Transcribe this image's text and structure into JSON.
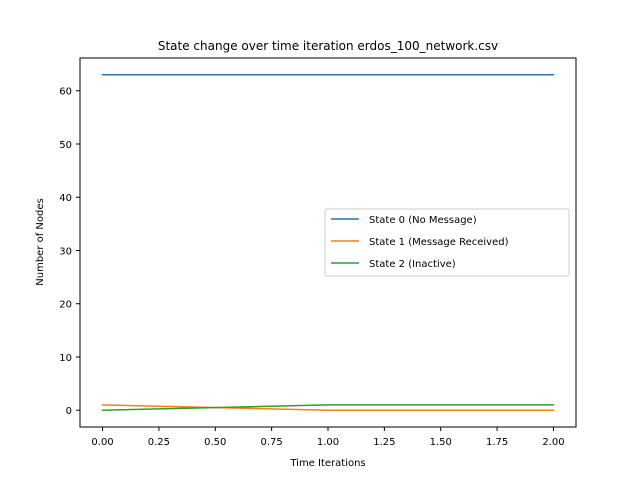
{
  "chart_data": {
    "type": "line",
    "title": "State change over time iteration erdos_100_network.csv",
    "xlabel": "Time Iterations",
    "ylabel": "Number of Nodes",
    "xlim": [
      -0.1,
      2.1
    ],
    "ylim": [
      -3.15,
      66.15
    ],
    "xticks": [
      0.0,
      0.25,
      0.5,
      0.75,
      1.0,
      1.25,
      1.5,
      1.75,
      2.0
    ],
    "xtick_labels": [
      "0.00",
      "0.25",
      "0.50",
      "0.75",
      "1.00",
      "1.25",
      "1.50",
      "1.75",
      "2.00"
    ],
    "yticks": [
      0,
      10,
      20,
      30,
      40,
      50,
      60
    ],
    "ytick_labels": [
      "0",
      "10",
      "20",
      "30",
      "40",
      "50",
      "60"
    ],
    "x": [
      0,
      1,
      2
    ],
    "series": [
      {
        "name": "State 0 (No Message)",
        "color": "#1f77b4",
        "values": [
          63,
          63,
          63
        ]
      },
      {
        "name": "State 1 (Message Received)",
        "color": "#ff7f0e",
        "values": [
          1,
          0,
          0
        ]
      },
      {
        "name": "State 2 (Inactive)",
        "color": "#2ca02c",
        "values": [
          0,
          1,
          1
        ]
      }
    ],
    "grid": false,
    "legend_position": "center-right"
  }
}
